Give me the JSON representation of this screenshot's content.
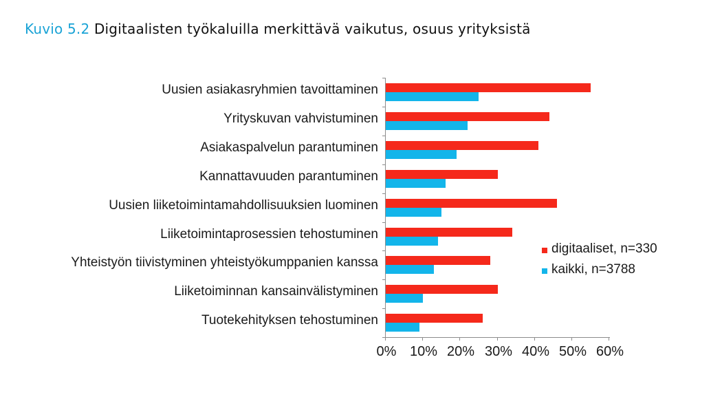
{
  "title": {
    "figure_number": "Kuvio 5.2",
    "text": "Digitaalisten työkaluilla merkittävä vaikutus, osuus yrityksistä"
  },
  "colors": {
    "title_accent": "#1aa3d6",
    "series_digitaaliset": "#f5291b",
    "series_kaikki": "#13b5ea",
    "axis": "#8c8c8c"
  },
  "legend": {
    "items": [
      {
        "label": "digitaaliset, n=330",
        "color": "#f5291b"
      },
      {
        "label": "kaikki, n=3788",
        "color": "#13b5ea"
      }
    ]
  },
  "x_axis": {
    "ticks": [
      "0%",
      "10%",
      "20%",
      "30%",
      "40%",
      "50%",
      "60%"
    ]
  },
  "chart_data": {
    "type": "bar",
    "orientation": "horizontal",
    "title": "Kuvio 5.2 Digitaalisten työkaluilla merkittävä vaikutus, osuus yrityksistä",
    "xlabel": "",
    "ylabel": "",
    "xlim": [
      0,
      60
    ],
    "unit": "%",
    "x_tick_labels": [
      "0%",
      "10%",
      "20%",
      "30%",
      "40%",
      "50%",
      "60%"
    ],
    "grid": false,
    "legend_position": "right",
    "categories": [
      "Uusien asiakasryhmien  tavoittaminen",
      "Yrityskuvan vahvistuminen",
      "Asiakaspalvelun parantuminen",
      "Kannattavuuden parantuminen",
      "Uusien liiketoimintamahdollisuuksien  luominen",
      "Liiketoimintaprosessien tehostuminen",
      "Yhteistyön tiivistyminen yhteistyökumppanien kanssa",
      "Liiketoiminnan kansainvälistyminen",
      "Tuotekehityksen tehostuminen"
    ],
    "series": [
      {
        "name": "digitaaliset, n=330",
        "color": "#f5291b",
        "values": [
          55,
          44,
          41,
          30,
          46,
          34,
          28,
          30,
          26
        ]
      },
      {
        "name": "kaikki, n=3788",
        "color": "#13b5ea",
        "values": [
          25,
          22,
          19,
          16,
          15,
          14,
          13,
          10,
          9
        ]
      }
    ]
  }
}
